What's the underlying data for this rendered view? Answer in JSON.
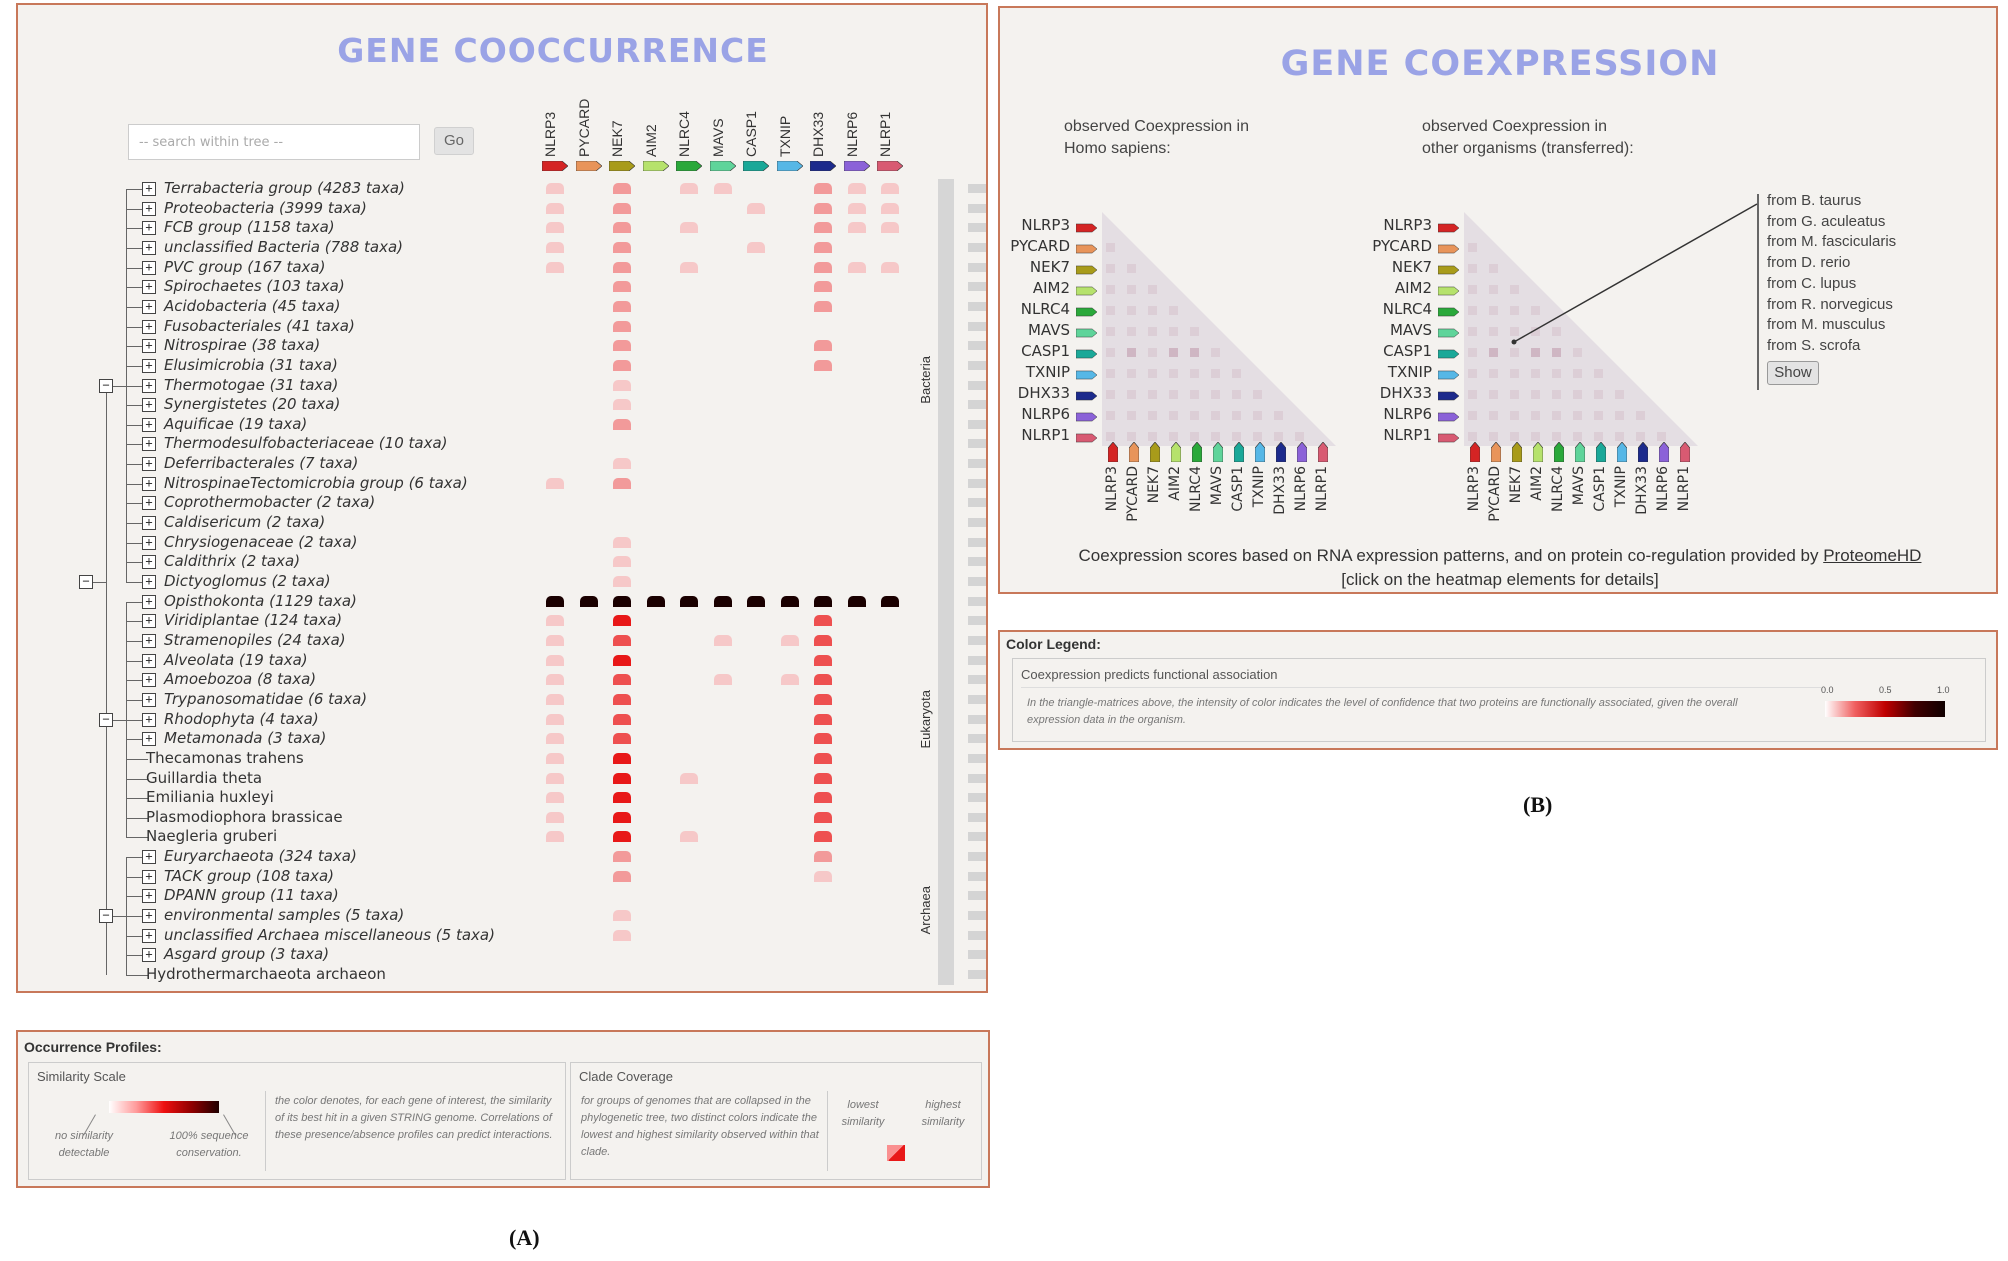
{
  "panel_a": {
    "title": "GENE COOCCURRENCE",
    "search_placeholder": "-- search within tree --",
    "go_label": "Go",
    "genes": [
      {
        "name": "NLRP3",
        "color": "#d42424"
      },
      {
        "name": "PYCARD",
        "color": "#e8945a"
      },
      {
        "name": "NEK7",
        "color": "#a89b1a"
      },
      {
        "name": "AIM2",
        "color": "#b6e26c"
      },
      {
        "name": "NLRC4",
        "color": "#2aa83a"
      },
      {
        "name": "MAVS",
        "color": "#5fd49a"
      },
      {
        "name": "CASP1",
        "color": "#1aa898"
      },
      {
        "name": "TXNIP",
        "color": "#56b7e6"
      },
      {
        "name": "DHX33",
        "color": "#1c2a8c"
      },
      {
        "name": "NLRP6",
        "color": "#8b62d8"
      },
      {
        "name": "NLRP1",
        "color": "#d85a72"
      }
    ],
    "taxa": [
      {
        "label": "Terrabacteria group (4283 taxa)",
        "type": "collapsed",
        "vals": [
          1,
          0,
          2,
          0,
          1,
          1,
          0,
          0,
          2,
          1,
          1
        ]
      },
      {
        "label": "Proteobacteria (3999 taxa)",
        "type": "collapsed",
        "vals": [
          1,
          0,
          2,
          0,
          0,
          0,
          1,
          0,
          2,
          1,
          1
        ]
      },
      {
        "label": "FCB group (1158 taxa)",
        "type": "collapsed",
        "vals": [
          1,
          0,
          2,
          0,
          1,
          0,
          0,
          0,
          2,
          1,
          1
        ]
      },
      {
        "label": "unclassified Bacteria (788 taxa)",
        "type": "collapsed",
        "vals": [
          1,
          0,
          2,
          0,
          0,
          0,
          1,
          0,
          2,
          0,
          0
        ]
      },
      {
        "label": "PVC group (167 taxa)",
        "type": "collapsed",
        "vals": [
          1,
          0,
          2,
          0,
          1,
          0,
          0,
          0,
          2,
          1,
          1
        ]
      },
      {
        "label": "Spirochaetes (103 taxa)",
        "type": "collapsed",
        "vals": [
          0,
          0,
          2,
          0,
          0,
          0,
          0,
          0,
          2,
          0,
          0
        ]
      },
      {
        "label": "Acidobacteria (45 taxa)",
        "type": "collapsed",
        "vals": [
          0,
          0,
          2,
          0,
          0,
          0,
          0,
          0,
          2,
          0,
          0
        ]
      },
      {
        "label": "Fusobacteriales (41 taxa)",
        "type": "collapsed",
        "vals": [
          0,
          0,
          2,
          0,
          0,
          0,
          0,
          0,
          0,
          0,
          0
        ]
      },
      {
        "label": "Nitrospirae (38 taxa)",
        "type": "collapsed",
        "vals": [
          0,
          0,
          2,
          0,
          0,
          0,
          0,
          0,
          2,
          0,
          0
        ]
      },
      {
        "label": "Elusimicrobia (31 taxa)",
        "type": "collapsed",
        "vals": [
          0,
          0,
          2,
          0,
          0,
          0,
          0,
          0,
          2,
          0,
          0
        ]
      },
      {
        "label": "Thermotogae (31 taxa)",
        "type": "collapsed",
        "vals": [
          0,
          0,
          1,
          0,
          0,
          0,
          0,
          0,
          0,
          0,
          0
        ]
      },
      {
        "label": "Synergistetes (20 taxa)",
        "type": "collapsed",
        "vals": [
          0,
          0,
          1,
          0,
          0,
          0,
          0,
          0,
          0,
          0,
          0
        ]
      },
      {
        "label": "Aquificae (19 taxa)",
        "type": "collapsed",
        "vals": [
          0,
          0,
          2,
          0,
          0,
          0,
          0,
          0,
          0,
          0,
          0
        ]
      },
      {
        "label": "Thermodesulfobacteriaceae (10 taxa)",
        "type": "collapsed",
        "vals": [
          0,
          0,
          0,
          0,
          0,
          0,
          0,
          0,
          0,
          0,
          0
        ]
      },
      {
        "label": "Deferribacterales (7 taxa)",
        "type": "collapsed",
        "vals": [
          0,
          0,
          1,
          0,
          0,
          0,
          0,
          0,
          0,
          0,
          0
        ]
      },
      {
        "label": "NitrospinaeTectomicrobia group (6 taxa)",
        "type": "collapsed",
        "vals": [
          1,
          0,
          2,
          0,
          0,
          0,
          0,
          0,
          0,
          0,
          0
        ]
      },
      {
        "label": "Coprothermobacter (2 taxa)",
        "type": "collapsed",
        "vals": [
          0,
          0,
          0,
          0,
          0,
          0,
          0,
          0,
          0,
          0,
          0
        ]
      },
      {
        "label": "Caldisericum (2 taxa)",
        "type": "collapsed",
        "vals": [
          0,
          0,
          0,
          0,
          0,
          0,
          0,
          0,
          0,
          0,
          0
        ]
      },
      {
        "label": "Chrysiogenaceae (2 taxa)",
        "type": "collapsed",
        "vals": [
          0,
          0,
          1,
          0,
          0,
          0,
          0,
          0,
          0,
          0,
          0
        ]
      },
      {
        "label": "Caldithrix (2 taxa)",
        "type": "collapsed",
        "vals": [
          0,
          0,
          1,
          0,
          0,
          0,
          0,
          0,
          0,
          0,
          0
        ]
      },
      {
        "label": "Dictyoglomus (2 taxa)",
        "type": "collapsed",
        "vals": [
          0,
          0,
          1,
          0,
          0,
          0,
          0,
          0,
          0,
          0,
          0
        ]
      },
      {
        "label": "Opisthokonta (1129 taxa)",
        "type": "collapsed",
        "vals": [
          9,
          9,
          9,
          9,
          9,
          9,
          9,
          9,
          9,
          9,
          9
        ]
      },
      {
        "label": "Viridiplantae (124 taxa)",
        "type": "collapsed",
        "vals": [
          1,
          0,
          4,
          0,
          0,
          0,
          0,
          0,
          3,
          0,
          0
        ]
      },
      {
        "label": "Stramenopiles (24 taxa)",
        "type": "collapsed",
        "vals": [
          1,
          0,
          3,
          0,
          0,
          1,
          0,
          1,
          3,
          0,
          0
        ]
      },
      {
        "label": "Alveolata (19 taxa)",
        "type": "collapsed",
        "vals": [
          1,
          0,
          4,
          0,
          0,
          0,
          0,
          0,
          3,
          0,
          0
        ]
      },
      {
        "label": "Amoebozoa (8 taxa)",
        "type": "collapsed",
        "vals": [
          1,
          0,
          3,
          0,
          0,
          1,
          0,
          1,
          3,
          0,
          0
        ]
      },
      {
        "label": "Trypanosomatidae (6 taxa)",
        "type": "collapsed",
        "vals": [
          1,
          0,
          3,
          0,
          0,
          0,
          0,
          0,
          3,
          0,
          0
        ]
      },
      {
        "label": "Rhodophyta (4 taxa)",
        "type": "collapsed",
        "vals": [
          1,
          0,
          3,
          0,
          0,
          0,
          0,
          0,
          3,
          0,
          0
        ]
      },
      {
        "label": "Metamonada (3 taxa)",
        "type": "collapsed",
        "vals": [
          1,
          0,
          3,
          0,
          0,
          0,
          0,
          0,
          3,
          0,
          0
        ]
      },
      {
        "label": "Thecamonas trahens",
        "type": "leaf",
        "vals": [
          1,
          0,
          4,
          0,
          0,
          0,
          0,
          0,
          3,
          0,
          0
        ]
      },
      {
        "label": "Guillardia theta",
        "type": "leaf",
        "vals": [
          1,
          0,
          4,
          0,
          1,
          0,
          0,
          0,
          3,
          0,
          0
        ]
      },
      {
        "label": "Emiliania huxleyi",
        "type": "leaf",
        "vals": [
          1,
          0,
          4,
          0,
          0,
          0,
          0,
          0,
          3,
          0,
          0
        ]
      },
      {
        "label": "Plasmodiophora brassicae",
        "type": "leaf",
        "vals": [
          1,
          0,
          4,
          0,
          0,
          0,
          0,
          0,
          3,
          0,
          0
        ]
      },
      {
        "label": "Naegleria gruberi",
        "type": "leaf",
        "vals": [
          1,
          0,
          4,
          0,
          1,
          0,
          0,
          0,
          3,
          0,
          0
        ]
      },
      {
        "label": "Euryarchaeota (324 taxa)",
        "type": "collapsed",
        "vals": [
          0,
          0,
          2,
          0,
          0,
          0,
          0,
          0,
          2,
          0,
          0
        ]
      },
      {
        "label": "TACK group (108 taxa)",
        "type": "collapsed",
        "vals": [
          0,
          0,
          2,
          0,
          0,
          0,
          0,
          0,
          1,
          0,
          0
        ]
      },
      {
        "label": "DPANN group (11 taxa)",
        "type": "collapsed",
        "vals": [
          0,
          0,
          0,
          0,
          0,
          0,
          0,
          0,
          0,
          0,
          0
        ]
      },
      {
        "label": "environmental samples (5 taxa)",
        "type": "collapsed",
        "vals": [
          0,
          0,
          1,
          0,
          0,
          0,
          0,
          0,
          0,
          0,
          0
        ]
      },
      {
        "label": "unclassified Archaea miscellaneous (5 taxa)",
        "type": "collapsed",
        "vals": [
          0,
          0,
          1,
          0,
          0,
          0,
          0,
          0,
          0,
          0,
          0
        ]
      },
      {
        "label": "Asgard group (3 taxa)",
        "type": "collapsed",
        "vals": [
          0,
          0,
          0,
          0,
          0,
          0,
          0,
          0,
          0,
          0,
          0
        ]
      },
      {
        "label": "Hydrothermarchaeota archaeon",
        "type": "leaf",
        "vals": [
          0,
          0,
          0,
          0,
          0,
          0,
          0,
          0,
          0,
          0,
          0
        ]
      }
    ],
    "domains": [
      {
        "label": "Bacteria",
        "start": 0,
        "end": 20
      },
      {
        "label": "Eukaryota",
        "start": 21,
        "end": 33
      },
      {
        "label": "Archaea",
        "start": 34,
        "end": 40
      }
    ],
    "heat_colors": [
      "transparent",
      "#f6c8c8",
      "#f29a9a",
      "#ee5050",
      "#e81818",
      "#b80000",
      "#800000",
      "#500000",
      "#2a0000",
      "#1a0000"
    ]
  },
  "legend_a": {
    "title": "Occurrence Profiles:",
    "similarity_title": "Similarity Scale",
    "no_similarity": "no similarity detectable",
    "full_similarity": "100% sequence conservation.",
    "similarity_desc": "the color denotes, for each gene of interest, the similarity of its best hit in a given STRING genome. Correlations of these presence/absence profiles can predict interactions.",
    "clade_title": "Clade Coverage",
    "clade_desc": "for groups of genomes that are collapsed in the phylogenetic tree, two distinct colors indicate the lowest and highest similarity observed within that clade.",
    "lowest": "lowest similarity",
    "highest": "highest similarity"
  },
  "panel_b": {
    "title": "GENE COEXPRESSION",
    "human_caption_1": "observed Coexpression in",
    "human_caption_2": "Homo sapiens:",
    "other_caption_1": "observed Coexpression in",
    "other_caption_2": "other organisms (transferred):",
    "genes": [
      {
        "name": "NLRP3",
        "color": "#d42424"
      },
      {
        "name": "PYCARD",
        "color": "#e8945a"
      },
      {
        "name": "NEK7",
        "color": "#a89b1a"
      },
      {
        "name": "AIM2",
        "color": "#b6e26c"
      },
      {
        "name": "NLRC4",
        "color": "#2aa83a"
      },
      {
        "name": "MAVS",
        "color": "#5fd49a"
      },
      {
        "name": "CASP1",
        "color": "#1aa898"
      },
      {
        "name": "TXNIP",
        "color": "#56b7e6"
      },
      {
        "name": "DHX33",
        "color": "#1c2a8c"
      },
      {
        "name": "NLRP6",
        "color": "#8b62d8"
      },
      {
        "name": "NLRP1",
        "color": "#d85a72"
      }
    ],
    "species": [
      "from B. taurus",
      "from G. aculeatus",
      "from M. fascicularis",
      "from D. rerio",
      "from C. lupus",
      "from R. norvegicus",
      "from M. musculus",
      "from S. scrofa"
    ],
    "show_label": "Show",
    "footer_1": "Coexpression scores based on RNA expression patterns, and on protein co-regulation provided by",
    "footer_link": "ProteomeHD",
    "footer_2": "[click on the heatmap elements for details]"
  },
  "legend_b": {
    "title": "Color Legend:",
    "subtitle": "Coexpression predicts functional association",
    "desc": "In the triangle-matrices above, the intensity of color indicates the level of confidence that two proteins are functionally associated, given the overall expression data in the organism.",
    "tick0": "0.0",
    "tick1": "0.5",
    "tick2": "1.0"
  },
  "captions": {
    "a": "(A)",
    "b": "(B)"
  }
}
